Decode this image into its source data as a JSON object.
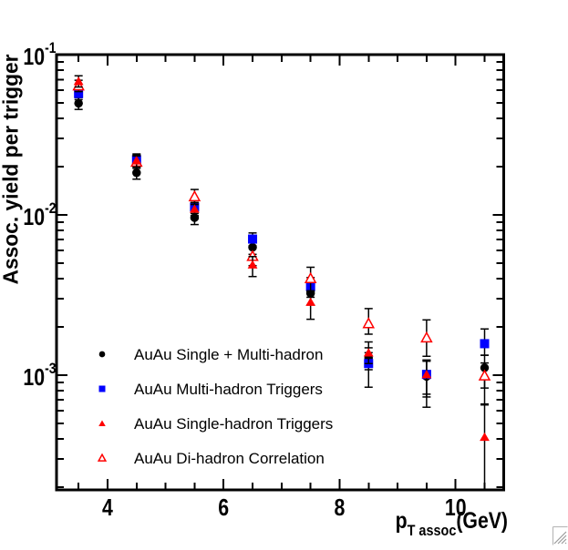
{
  "chart_data": {
    "type": "scatter",
    "title": "",
    "ylabel": "Assoc. yield per trigger",
    "xlabel_parts": {
      "prefix": "p",
      "subscript": "T assoc",
      "suffix": "(GeV)"
    },
    "yscale": "log",
    "xlim": [
      3.12,
      10.83
    ],
    "ylim": [
      0.000192,
      0.1
    ],
    "x_major_ticks": [
      4,
      6,
      8,
      10
    ],
    "x_tick_labels": [
      "4",
      "6",
      "8",
      "10"
    ],
    "x_minor_tick_step": 0.5,
    "y_tick_base": "10",
    "y_major_tick_exponents": [
      -1,
      -2,
      -3
    ],
    "grid": false,
    "legend_position": "inside-bottom-left",
    "draw_order": [
      0,
      1,
      3,
      2
    ],
    "series": [
      {
        "name": "AuAu Single + Multi-hadron",
        "marker": "filled-circle",
        "color": "#000000",
        "error_bar_color": "#000000",
        "x": [
          3.5,
          4.5,
          5.5,
          6.5,
          7.5,
          8.5,
          9.5,
          10.5
        ],
        "y": [
          0.0497,
          0.0183,
          0.0096,
          0.00627,
          0.00324,
          0.00128,
          0.00098,
          0.00111
        ],
        "ey_plus": [
          0.0042,
          0.0016,
          0.0009,
          0.0006,
          0.0005,
          0.0002,
          0.00024,
          0.00022
        ],
        "ey_minus": [
          0.0042,
          0.0016,
          0.0009,
          0.0006,
          0.0005,
          0.0002,
          0.00025,
          0.00028
        ]
      },
      {
        "name": "AuAu Multi-hadron Triggers",
        "marker": "filled-square",
        "color": "#0000ff",
        "error_bar_color": "#000000",
        "x": [
          3.5,
          4.5,
          5.5,
          6.5,
          7.5,
          8.5,
          9.5,
          10.5
        ],
        "y": [
          0.0572,
          0.0221,
          0.0112,
          0.00706,
          0.00356,
          0.00118,
          0.00101,
          0.00157
        ],
        "ey_plus": [
          0.0048,
          0.0019,
          0.001,
          0.00065,
          0.0005,
          0.0002,
          0.00023,
          0.00037
        ],
        "ey_minus": [
          0.0048,
          0.0019,
          0.001,
          0.00065,
          0.0005,
          0.00034,
          0.00025,
          0.00024
        ]
      },
      {
        "name": "AuAu Single-hadron Triggers",
        "marker": "filled-triangle",
        "color": "#ff0000",
        "error_bar_color": "#000000",
        "x": [
          3.5,
          4.5,
          5.5,
          6.5,
          7.5,
          8.5,
          9.5,
          10.5
        ],
        "y": [
          0.0683,
          0.0218,
          0.0109,
          0.00489,
          0.00286,
          0.00138,
          0.00101,
          0.000411
        ],
        "ey_plus": [
          0.0055,
          0.0019,
          0.001,
          0.0006,
          0.0005,
          0.00023,
          0.00023,
          0.00024
        ],
        "ey_minus": [
          0.0055,
          0.0019,
          0.001,
          0.00077,
          0.00063,
          0.0002,
          0.00038,
          0.000223
        ]
      },
      {
        "name": "AuAu Di-hadron Correlation",
        "marker": "open-triangle",
        "color": "#ff0000",
        "error_bar_color": "#000000",
        "x": [
          3.5,
          4.5,
          5.5,
          6.5,
          7.5,
          8.5,
          9.5,
          10.5
        ],
        "y": [
          0.064,
          0.0214,
          0.013,
          0.00552,
          0.00401,
          0.0021,
          0.00171,
          0.00099
        ],
        "ey_plus": [
          0.0052,
          0.0019,
          0.0014,
          0.0007,
          0.0007,
          0.0005,
          0.0005,
          0.0002
        ],
        "ey_minus": [
          0.0052,
          0.0019,
          0.0014,
          0.0007,
          0.0007,
          0.0003,
          0.0004,
          0.00033
        ]
      }
    ]
  },
  "icons": {
    "bottom_right": "resize-grip"
  }
}
